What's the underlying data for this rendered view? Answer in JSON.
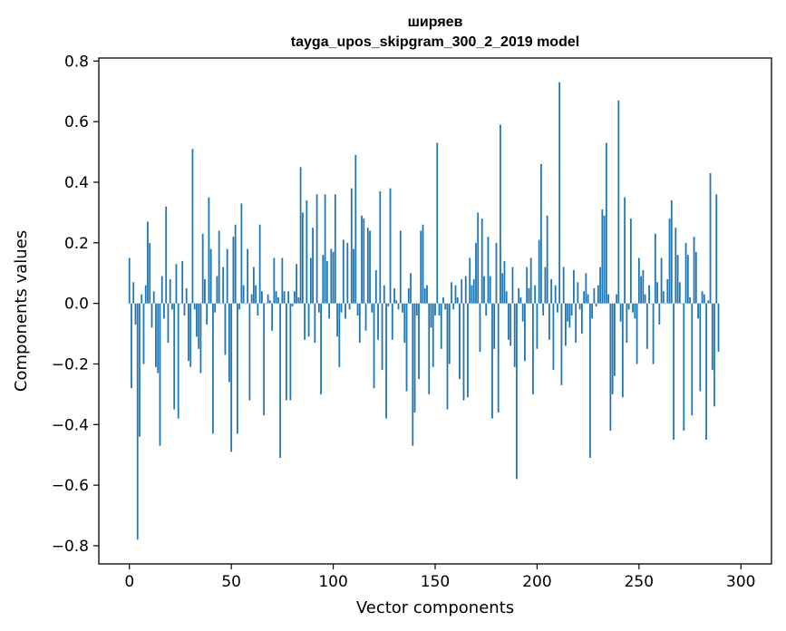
{
  "chart_data": {
    "type": "bar",
    "title": "ширяев",
    "subtitle": "tayga_upos_skipgram_300_2_2019 model",
    "xlabel": "Vector components",
    "ylabel": "Components values",
    "xlim": [
      -15,
      315
    ],
    "ylim": [
      -0.86,
      0.81
    ],
    "xticks": [
      0,
      50,
      100,
      150,
      200,
      250,
      300
    ],
    "yticks": [
      -0.8,
      -0.6,
      -0.4,
      -0.2,
      0.0,
      0.2,
      0.4,
      0.6,
      0.8
    ],
    "xtick_labels": [
      "0",
      "50",
      "100",
      "150",
      "200",
      "250",
      "300"
    ],
    "ytick_labels": [
      "−0.8",
      "−0.6",
      "−0.4",
      "−0.2",
      "0.0",
      "0.2",
      "0.4",
      "0.6",
      "0.8"
    ],
    "grid": false,
    "bar_color": "#1f77b4",
    "x_start": 0,
    "values": [
      0.15,
      -0.28,
      0.07,
      -0.07,
      -0.78,
      -0.44,
      0.03,
      -0.2,
      0.06,
      0.27,
      0.2,
      -0.08,
      0.04,
      -0.21,
      -0.23,
      -0.47,
      0.09,
      -0.05,
      0.32,
      -0.13,
      0.08,
      -0.02,
      -0.35,
      0.13,
      -0.38,
      0.0,
      0.14,
      -0.04,
      0.05,
      -0.19,
      -0.21,
      0.51,
      -0.02,
      -0.11,
      -0.15,
      -0.23,
      0.23,
      0.08,
      -0.07,
      0.35,
      0.18,
      -0.43,
      -0.03,
      0.09,
      0.24,
      0.0,
      0.12,
      -0.17,
      0.18,
      -0.26,
      -0.49,
      0.22,
      0.26,
      -0.43,
      -0.02,
      0.33,
      0.06,
      0.0,
      0.18,
      -0.32,
      0.03,
      0.12,
      0.06,
      -0.04,
      0.26,
      0.04,
      -0.37,
      0.0,
      0.03,
      0.01,
      -0.09,
      0.15,
      0.04,
      0.02,
      -0.51,
      0.15,
      0.04,
      -0.32,
      0.04,
      -0.32,
      -0.01,
      0.04,
      0.13,
      0.02,
      0.45,
      0.3,
      -0.12,
      0.34,
      -0.11,
      0.15,
      0.25,
      -0.13,
      0.36,
      -0.03,
      -0.3,
      0.16,
      0.36,
      0.14,
      -0.05,
      0.18,
      0.17,
      0.36,
      -0.11,
      -0.21,
      -0.03,
      0.21,
      -0.05,
      0.2,
      -0.02,
      0.38,
      0.18,
      0.49,
      -0.04,
      -0.13,
      0.29,
      0.28,
      -0.09,
      0.25,
      0.24,
      -0.03,
      -0.28,
      0.11,
      -0.12,
      0.37,
      -0.22,
      0.06,
      -0.38,
      -0.01,
      0.38,
      -0.12,
      0.05,
      0.01,
      -0.02,
      0.24,
      -0.03,
      -0.13,
      -0.29,
      0.05,
      0.1,
      -0.47,
      -0.36,
      -0.04,
      -0.25,
      0.24,
      0.26,
      0.05,
      0.06,
      -0.3,
      -0.08,
      -0.21,
      -0.04,
      0.53,
      -0.04,
      -0.15,
      0.02,
      -0.02,
      -0.35,
      -0.2,
      0.07,
      -0.02,
      0.06,
      0.02,
      -0.25,
      0.08,
      -0.32,
      0.09,
      -0.31,
      0.15,
      0.06,
      0.08,
      0.2,
      0.3,
      -0.16,
      0.28,
      0.09,
      -0.04,
      0.22,
      0.09,
      -0.38,
      -0.15,
      0.2,
      -0.36,
      0.59,
      0.1,
      0.14,
      0.04,
      -0.12,
      -0.14,
      0.12,
      -0.21,
      -0.58,
      0.05,
      0.02,
      -0.06,
      -0.19,
      0.12,
      0.05,
      0.15,
      -0.3,
      0.06,
      -0.15,
      0.21,
      0.46,
      -0.04,
      0.12,
      0.29,
      -0.12,
      0.08,
      -0.22,
      0.06,
      -0.03,
      0.73,
      -0.27,
      0.12,
      -0.14,
      -0.06,
      -0.08,
      -0.04,
      0.11,
      -0.13,
      0.07,
      -0.02,
      -0.1,
      0.04,
      0.1,
      0.03,
      -0.51,
      -0.05,
      0.05,
      -0.01,
      0.06,
      0.12,
      0.31,
      0.29,
      0.53,
      0.03,
      -0.42,
      -0.3,
      -0.24,
      0.03,
      0.67,
      -0.06,
      -0.31,
      0.35,
      -0.13,
      -0.02,
      0.28,
      -0.03,
      -0.05,
      -0.2,
      0.15,
      0.09,
      0.11,
      0.03,
      -0.15,
      0.06,
      0.0,
      -0.2,
      0.23,
      0.07,
      -0.07,
      0.15,
      0.04,
      0.0,
      0.08,
      0.28,
      0.34,
      -0.45,
      0.25,
      0.16,
      0.07,
      0.0,
      -0.42,
      0.2,
      0.16,
      0.02,
      -0.37,
      0.22,
      0.17,
      -0.05,
      -0.29,
      0.04,
      0.03,
      -0.45,
      0.01,
      0.43,
      -0.22,
      -0.34,
      0.36,
      -0.16
    ]
  }
}
